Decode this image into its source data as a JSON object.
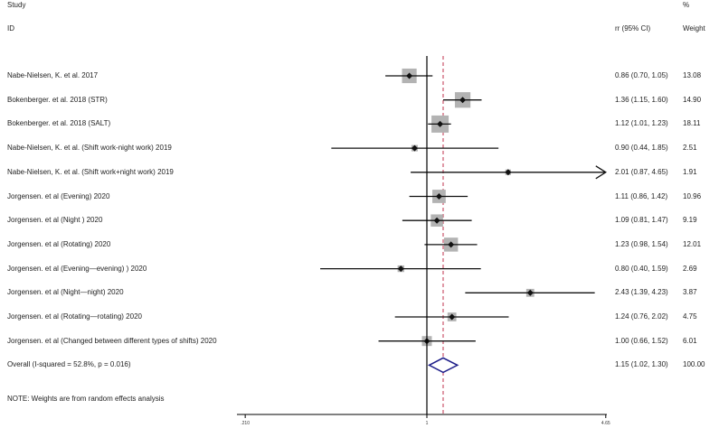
{
  "header": {
    "study_label": "Study",
    "id_label": "ID",
    "pct_label": "%",
    "effect_label": "rr (95% CI)",
    "weight_label": "Weight"
  },
  "chart_data": {
    "type": "forest",
    "scale": "log",
    "axis_ticks": [
      {
        "label": ".210",
        "value": 0.21
      },
      {
        "label": "1",
        "value": 1
      },
      {
        "label": "4.65",
        "value": 4.65
      }
    ],
    "null_line_value": 1,
    "overall_line_value": 1.15,
    "studies": [
      {
        "label": "Nabe-Nielsen, K. et al. 2017",
        "rr": 0.86,
        "lo": 0.7,
        "hi": 1.05,
        "ci_text": "0.86 (0.70, 1.05)",
        "weight": 13.08,
        "weight_text": "13.08",
        "arrow_right": false
      },
      {
        "label": "Bokenberger. et al. 2018  (STR)",
        "rr": 1.36,
        "lo": 1.15,
        "hi": 1.6,
        "ci_text": "1.36 (1.15, 1.60)",
        "weight": 14.9,
        "weight_text": "14.90",
        "arrow_right": false
      },
      {
        "label": "Bokenberger. et al. 2018  (SALT)",
        "rr": 1.12,
        "lo": 1.01,
        "hi": 1.23,
        "ci_text": "1.12 (1.01, 1.23)",
        "weight": 18.11,
        "weight_text": "18.11",
        "arrow_right": false
      },
      {
        "label": "Nabe-Nielsen, K. et al. (Shift work-night work)  2019",
        "rr": 0.9,
        "lo": 0.44,
        "hi": 1.85,
        "ci_text": "0.90 (0.44, 1.85)",
        "weight": 2.51,
        "weight_text": "2.51",
        "arrow_right": false
      },
      {
        "label": "Nabe-Nielsen, K. et al. (Shift work+night work) 2019",
        "rr": 2.01,
        "lo": 0.87,
        "hi": 4.65,
        "ci_text": "2.01 (0.87, 4.65)",
        "weight": 1.91,
        "weight_text": "1.91",
        "arrow_right": true
      },
      {
        "label": "Jorgensen. et al  (Evening) 2020",
        "rr": 1.11,
        "lo": 0.86,
        "hi": 1.42,
        "ci_text": "1.11 (0.86, 1.42)",
        "weight": 10.96,
        "weight_text": "10.96",
        "arrow_right": false
      },
      {
        "label": "Jorgensen. et al  (Night ) 2020",
        "rr": 1.09,
        "lo": 0.81,
        "hi": 1.47,
        "ci_text": "1.09 (0.81, 1.47)",
        "weight": 9.19,
        "weight_text": "9.19",
        "arrow_right": false
      },
      {
        "label": "Jorgensen. et al  (Rotating) 2020",
        "rr": 1.23,
        "lo": 0.98,
        "hi": 1.54,
        "ci_text": "1.23 (0.98, 1.54)",
        "weight": 12.01,
        "weight_text": "12.01",
        "arrow_right": false
      },
      {
        "label": "Jorgensen. et al  (Evening—evening) ) 2020",
        "rr": 0.8,
        "lo": 0.4,
        "hi": 1.59,
        "ci_text": "0.80 (0.40, 1.59)",
        "weight": 2.69,
        "weight_text": "2.69",
        "arrow_right": false
      },
      {
        "label": "Jorgensen. et al  (Night—night) 2020",
        "rr": 2.43,
        "lo": 1.39,
        "hi": 4.23,
        "ci_text": "2.43 (1.39, 4.23)",
        "weight": 3.87,
        "weight_text": "3.87",
        "arrow_right": false
      },
      {
        "label": "Jorgensen. et al  (Rotating—rotating) 2020",
        "rr": 1.24,
        "lo": 0.76,
        "hi": 2.02,
        "ci_text": "1.24 (0.76, 2.02)",
        "weight": 4.75,
        "weight_text": "4.75",
        "arrow_right": false
      },
      {
        "label": "Jorgensen. et al  (Changed between  different types of shifts) 2020",
        "rr": 1.0,
        "lo": 0.66,
        "hi": 1.52,
        "ci_text": "1.00 (0.66, 1.52)",
        "weight": 6.01,
        "weight_text": "6.01",
        "arrow_right": false
      }
    ],
    "overall": {
      "label": "Overall  (I-squared = 52.8%, p = 0.016)",
      "rr": 1.15,
      "lo": 1.02,
      "hi": 1.3,
      "ci_text": "1.15 (1.02, 1.30)",
      "weight_text": "100.00"
    },
    "note": "NOTE: Weights are from random effects analysis",
    "colors": {
      "box": "#b3b3b3",
      "point": "#111111",
      "line": "#111111",
      "overall_diamond": "#1f1f8a",
      "overall_line": "#c0334d"
    }
  }
}
